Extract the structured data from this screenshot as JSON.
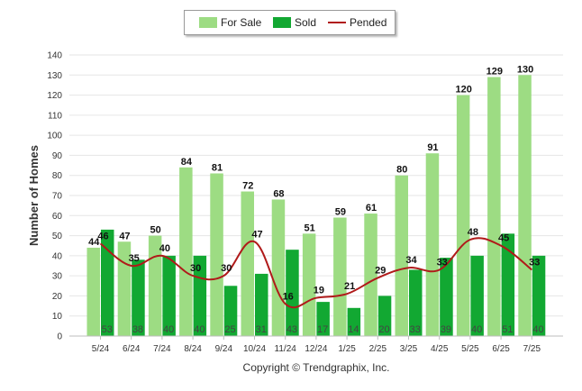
{
  "chart_data": {
    "type": "bar",
    "ylabel": "Number of Homes",
    "xlabel": "",
    "ylim": [
      0,
      140
    ],
    "yticks": [
      0,
      10,
      20,
      30,
      40,
      50,
      60,
      70,
      80,
      90,
      100,
      110,
      120,
      130,
      140
    ],
    "grid": true,
    "legend_position": "top-center",
    "categories": [
      "5/24",
      "6/24",
      "7/24",
      "8/24",
      "9/24",
      "10/24",
      "11/24",
      "12/24",
      "1/25",
      "2/25",
      "3/25",
      "4/25",
      "5/25",
      "6/25",
      "7/25"
    ],
    "series": [
      {
        "name": "For Sale",
        "kind": "bar",
        "color": "#9ddc83",
        "values": [
          44,
          47,
          50,
          84,
          81,
          72,
          68,
          51,
          59,
          61,
          80,
          91,
          120,
          129,
          130
        ]
      },
      {
        "name": "Sold",
        "kind": "bar",
        "color": "#12a832",
        "values": [
          53,
          38,
          40,
          40,
          25,
          31,
          43,
          17,
          14,
          20,
          33,
          39,
          40,
          51,
          40
        ]
      },
      {
        "name": "Pended",
        "kind": "line",
        "color": "#b01a1a",
        "values": [
          46,
          35,
          40,
          30,
          30,
          47,
          16,
          19,
          21,
          29,
          34,
          33,
          48,
          45,
          33
        ]
      }
    ]
  },
  "legend": {
    "for_sale": "For Sale",
    "sold": "Sold",
    "pended": "Pended"
  },
  "footer": {
    "copyright": "Copyright © Trendgraphix, Inc."
  }
}
